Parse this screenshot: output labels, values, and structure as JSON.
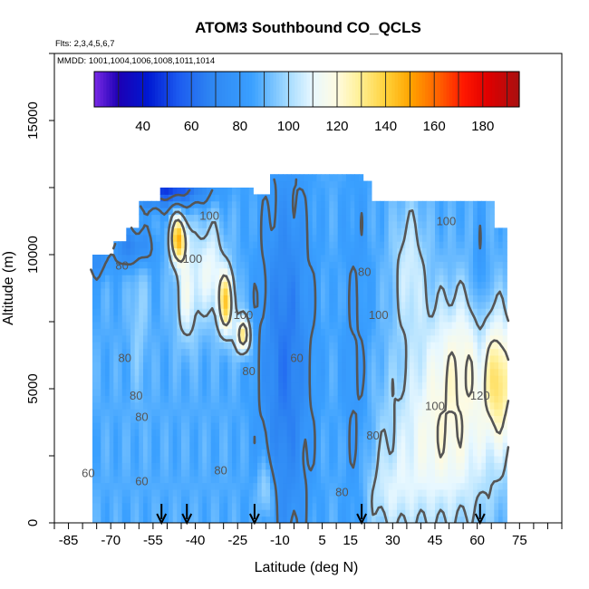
{
  "chart_data": {
    "type": "heatmap",
    "title": "ATOM3 Southbound CO_QCLS",
    "flights_label": "Flts: 2,3,4,5,6,7",
    "mmdd_label": "MMDD: 1001,1004,1006,1008,1011,1014",
    "xlabel": "Latitude (deg N)",
    "ylabel": "Altitude (m)",
    "xlim": [
      -90,
      90
    ],
    "ylim": [
      0,
      17500
    ],
    "x_ticks": [
      -85,
      -70,
      -55,
      -40,
      -25,
      -10,
      5,
      15,
      30,
      45,
      60,
      75
    ],
    "x_minor_step": 5,
    "y_ticks": [
      0,
      5000,
      10000,
      15000
    ],
    "colorbar": {
      "min": 20,
      "max": 195,
      "ticks": [
        40,
        60,
        80,
        100,
        120,
        140,
        160,
        180
      ],
      "stops": [
        [
          20,
          "#7a2ae6"
        ],
        [
          30,
          "#1c00b4"
        ],
        [
          42,
          "#0018d2"
        ],
        [
          55,
          "#1c5cf0"
        ],
        [
          68,
          "#2e86f2"
        ],
        [
          85,
          "#3aa0ff"
        ],
        [
          100,
          "#a6dcff"
        ],
        [
          110,
          "#e8f8ff"
        ],
        [
          120,
          "#fffbe0"
        ],
        [
          128,
          "#fff2a0"
        ],
        [
          140,
          "#ffd23a"
        ],
        [
          150,
          "#ffa500"
        ],
        [
          162,
          "#ff6000"
        ],
        [
          172,
          "#ff1800"
        ],
        [
          182,
          "#e00000"
        ],
        [
          195,
          "#a81010"
        ]
      ]
    },
    "contour_labels": [
      {
        "text": "100",
        "lat": -35,
        "alt": 11300
      },
      {
        "text": "100",
        "lat": -41,
        "alt": 9700
      },
      {
        "text": "80",
        "lat": -66,
        "alt": 9450
      },
      {
        "text": "80",
        "lat": -65,
        "alt": 6000
      },
      {
        "text": "80",
        "lat": -61,
        "alt": 4600
      },
      {
        "text": "80",
        "lat": -59,
        "alt": 3800
      },
      {
        "text": "60",
        "lat": -59,
        "alt": 1400
      },
      {
        "text": "60",
        "lat": -78,
        "alt": 1700
      },
      {
        "text": "80",
        "lat": -21,
        "alt": 5500
      },
      {
        "text": "80",
        "lat": -31,
        "alt": 1800
      },
      {
        "text": "100",
        "lat": -23,
        "alt": 7600
      },
      {
        "text": "60",
        "lat": -4,
        "alt": 6000
      },
      {
        "text": "80",
        "lat": 20,
        "alt": 9200
      },
      {
        "text": "100",
        "lat": 25,
        "alt": 7600
      },
      {
        "text": "100",
        "lat": 49,
        "alt": 11100
      },
      {
        "text": "100",
        "lat": 45,
        "alt": 4200
      },
      {
        "text": "120",
        "lat": 61,
        "alt": 4600
      },
      {
        "text": "80",
        "lat": 23,
        "alt": 3100
      },
      {
        "text": "80",
        "lat": 12,
        "alt": 1000
      }
    ],
    "arrows_lat": [
      -52,
      -43,
      -19,
      19,
      61
    ]
  }
}
